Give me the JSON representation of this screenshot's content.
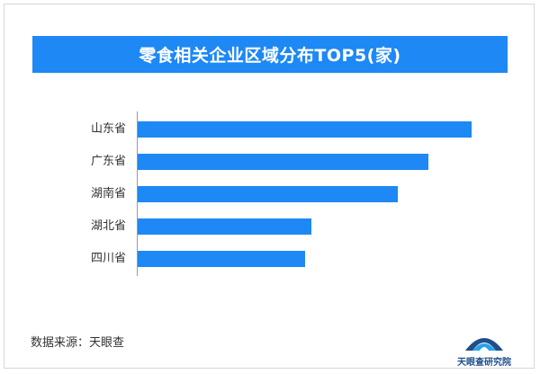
{
  "title": "零食相关企业区域分布TOP5(家)",
  "source": "数据来源：天眼查",
  "logo_text": "天眼查研究院",
  "colors": {
    "bar": "#1e88f5",
    "title_bg": "#1e88f5"
  },
  "chart_data": {
    "type": "bar",
    "orientation": "horizontal",
    "title": "零食相关企业区域分布TOP5(家)",
    "categories": [
      "山东省",
      "广东省",
      "湖南省",
      "湖北省",
      "四川省"
    ],
    "values": [
      100,
      87,
      78,
      52,
      50
    ],
    "value_scale": "relative (no axis values printed)",
    "grid": false,
    "legend": "none"
  }
}
